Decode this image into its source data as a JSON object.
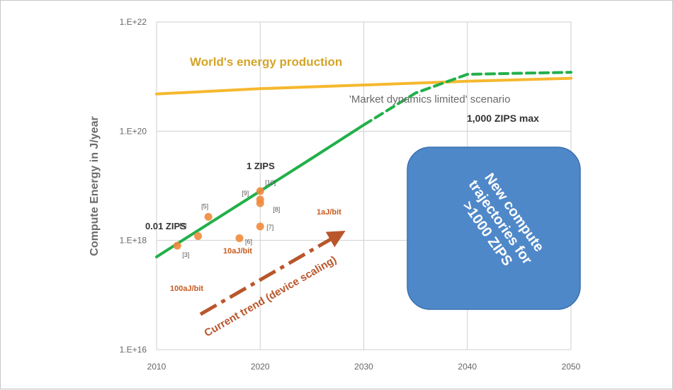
{
  "chart_data": {
    "type": "line",
    "ylabel": "Compute Energy in J/year",
    "xlabel": "",
    "yscale": "log",
    "xlim": [
      2010,
      2050
    ],
    "ylim": [
      1e+16,
      1e+22
    ],
    "x_ticks": [
      "2010",
      "2020",
      "2030",
      "2040",
      "2050"
    ],
    "y_ticks": [
      "1.E+16",
      "1.E+18",
      "1.E+20",
      "1.E+22"
    ],
    "grid": true,
    "series": [
      {
        "name": "World's energy production",
        "color": "#f5b82e",
        "style": "solid",
        "x": [
          2010,
          2020,
          2030,
          2040,
          2050
        ],
        "y": [
          4.8e+20,
          6e+20,
          7e+20,
          8.2e+20,
          9.3e+20
        ]
      },
      {
        "name": "Current trend (device scaling)",
        "color": "#22b04a",
        "style": "solid",
        "x": [
          2010,
          2015,
          2020,
          2025,
          2030
        ],
        "y": [
          5e+17,
          2e+18,
          8e+18,
          3.2e+19,
          1.3e+20
        ]
      },
      {
        "name": "'Market dynamics limited' scenario",
        "color": "#22b04a",
        "style": "dashed",
        "x": [
          2030,
          2035,
          2040,
          2045,
          2050
        ],
        "y": [
          1.3e+20,
          5e+20,
          1.1e+21,
          1.15e+21,
          1.2e+21
        ]
      }
    ],
    "points": [
      {
        "x": 2012,
        "y": 8e+17,
        "label": "[3]"
      },
      {
        "x": 2014,
        "y": 1.2e+18,
        "label": "[4]"
      },
      {
        "x": 2015,
        "y": 2.7e+18,
        "label": "[5]"
      },
      {
        "x": 2018,
        "y": 1.1e+18,
        "label": "[6]"
      },
      {
        "x": 2020,
        "y": 1.8e+18,
        "label": "[7]"
      },
      {
        "x": 2020,
        "y": 4.8e+18,
        "label": "[8]"
      },
      {
        "x": 2020,
        "y": 5.6e+18,
        "label": "[9]"
      },
      {
        "x": 2020,
        "y": 8e+18,
        "label": "[10]"
      }
    ],
    "point_color": "#f08a3c",
    "annotations": {
      "world_energy": "World's energy production",
      "scenario": "'Market dynamics limited' scenario",
      "zips_max": "1,000 ZIPS max",
      "one_zips": "1 ZIPS",
      "small_zips": "0.01 ZIPS",
      "aj1": "1aJ/bit",
      "aj10": "10aJ/bit",
      "aj100": "100aJ/bit",
      "trend": "Current trend (device scaling)",
      "new_box": "New compute trajectories for >1000 ZIPS"
    },
    "colors": {
      "world_energy_text": "#d4a429",
      "aj_text": "#c85a1e",
      "trend_arrow": "#b9562b",
      "box_fill": "#4f88c8",
      "box_stroke": "#3a6fb0"
    }
  }
}
